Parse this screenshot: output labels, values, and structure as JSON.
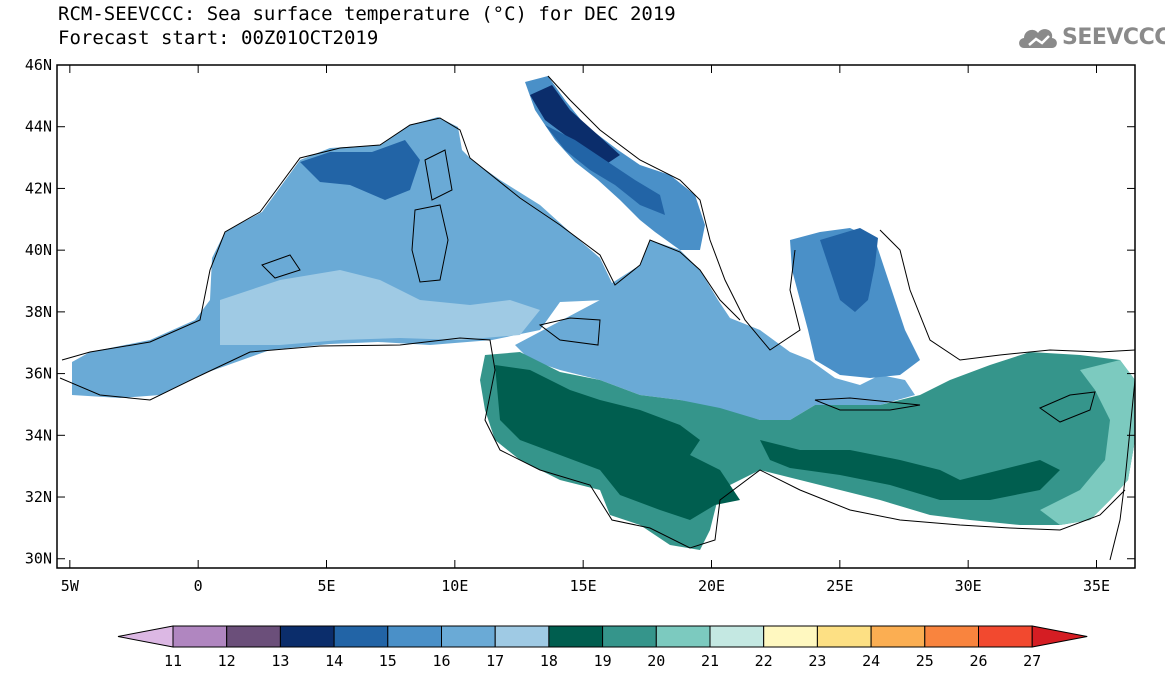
{
  "title": {
    "line1": "RCM-SEEVCCC: Sea surface temperature (°C) for DEC 2019",
    "line2": "Forecast start: 00Z01OCT2019"
  },
  "logo": {
    "text": "SEEVCCC",
    "icon": "cloud-icon",
    "color": "#8a8a8a"
  },
  "map": {
    "lon_range": [
      -5.5,
      36.5
    ],
    "lat_range": [
      29.7,
      46.0
    ],
    "x_ticks": [
      "5W",
      "0",
      "5E",
      "10E",
      "15E",
      "20E",
      "25E",
      "30E",
      "35E"
    ],
    "y_ticks": [
      "30N",
      "32N",
      "34N",
      "36N",
      "38N",
      "40N",
      "42N",
      "44N",
      "46N"
    ],
    "land_color": "#ffffff",
    "coastline_color": "#000000"
  },
  "colorbar": {
    "labels": [
      "11",
      "12",
      "13",
      "14",
      "15",
      "16",
      "17",
      "18",
      "19",
      "20",
      "21",
      "22",
      "23",
      "24",
      "25",
      "26",
      "27"
    ],
    "colors": [
      "#dcb8e4",
      "#b086c0",
      "#6b4f7a",
      "#0b2d6b",
      "#2264a6",
      "#4a90c8",
      "#6aaad6",
      "#9fcae4",
      "#005e4f",
      "#35958b",
      "#7ccabf",
      "#c4e8e2",
      "#fff8c0",
      "#fde084",
      "#fbae52",
      "#f9843e",
      "#f2492f",
      "#d51d23"
    ]
  }
}
